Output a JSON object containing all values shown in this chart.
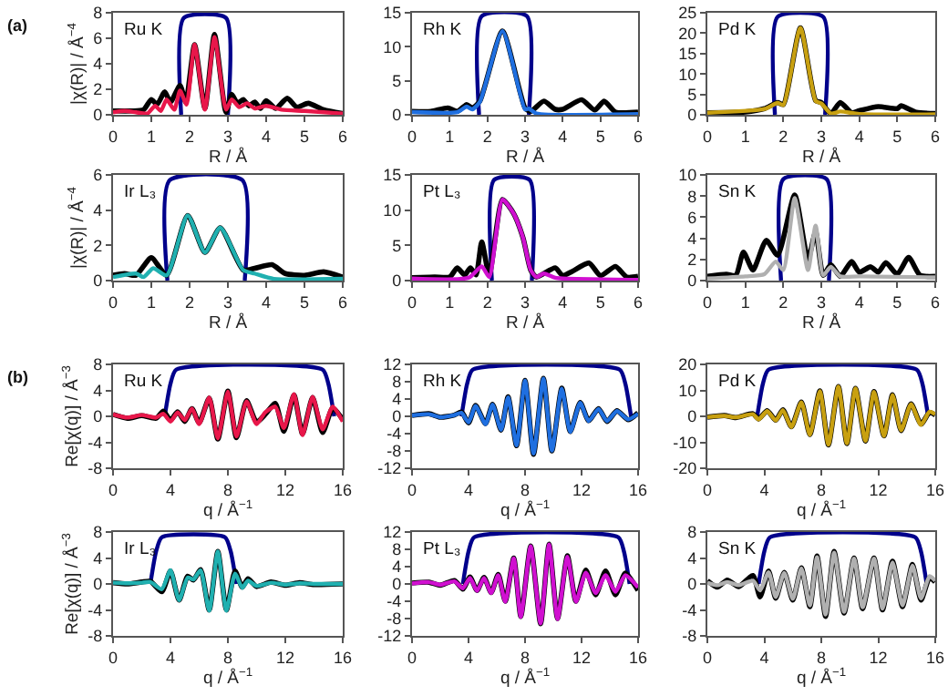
{
  "chart_data": [
    {
      "type": "line",
      "annotations": [
        "Ru K",
        "(a)"
      ],
      "xlabel": "R / Å",
      "ylabel": "|χ(R)| / Å$^{−4}$",
      "xlim": [
        0,
        6
      ],
      "xticks": [
        0,
        1,
        2,
        3,
        4,
        5,
        6
      ],
      "ylim": [
        0,
        8
      ],
      "yticks": [
        0,
        2,
        4,
        6,
        8
      ],
      "series": [
        {
          "color": "#00008b",
          "x": [
            1.78,
            1.85,
            2.95,
            3.0
          ],
          "values": [
            0,
            7.6,
            7.6,
            0
          ]
        },
        {
          "color": "#000000",
          "x": [
            0,
            0.5,
            0.8,
            1.0,
            1.15,
            1.35,
            1.5,
            1.75,
            1.9,
            2.13,
            2.4,
            2.65,
            2.95,
            3.1,
            3.25,
            3.4,
            3.55,
            3.7,
            3.85,
            4.0,
            4.25,
            4.55,
            4.8,
            5.1,
            5.5,
            6
          ],
          "values": [
            0.3,
            0.3,
            0.4,
            1.2,
            0.8,
            1.8,
            1.0,
            2.3,
            1.0,
            5.5,
            0.5,
            6.3,
            0.2,
            1.6,
            0.9,
            1.2,
            0.7,
            1.0,
            0.5,
            1.1,
            0.5,
            1.3,
            0.6,
            0.9,
            0.4,
            0.1
          ]
        },
        {
          "color": "#e8174a",
          "x": [
            0,
            0.3,
            0.6,
            0.9,
            1.1,
            1.25,
            1.4,
            1.6,
            1.75,
            1.92,
            2.13,
            2.4,
            2.65,
            2.95,
            3.1,
            3.3,
            3.5,
            3.7,
            4.0,
            4.4,
            5.0,
            6
          ],
          "values": [
            0.2,
            0.3,
            0.2,
            0.1,
            0.7,
            0.3,
            1.2,
            0.4,
            1.9,
            0.8,
            5.5,
            0.4,
            6.1,
            0.4,
            1.2,
            0.6,
            0.9,
            0.5,
            0.7,
            0.4,
            0.3,
            0.1
          ]
        }
      ]
    },
    {
      "type": "line",
      "annotations": [
        "Rh K"
      ],
      "xlabel": "R / Å",
      "xlim": [
        0,
        6
      ],
      "xticks": [
        0,
        1,
        2,
        3,
        4,
        5,
        6
      ],
      "ylim": [
        0,
        15
      ],
      "yticks": [
        0,
        5,
        10,
        15
      ],
      "series": [
        {
          "color": "#00008b",
          "x": [
            1.78,
            1.85,
            3.05,
            3.1
          ],
          "values": [
            0,
            14.5,
            14.5,
            0
          ]
        },
        {
          "color": "#000000",
          "x": [
            0,
            0.5,
            0.95,
            1.2,
            1.45,
            1.6,
            1.8,
            2.4,
            3.0,
            3.15,
            3.5,
            3.8,
            4.0,
            4.5,
            4.85,
            5.1,
            5.4,
            6
          ],
          "values": [
            0.5,
            0.5,
            1.0,
            0.5,
            1.5,
            1.0,
            2.0,
            12.3,
            1.0,
            0.5,
            2.0,
            0.8,
            0.8,
            2.2,
            0.7,
            2.0,
            0.4,
            0.4
          ]
        },
        {
          "color": "#1f6fe0",
          "x": [
            0,
            1.2,
            1.45,
            1.6,
            1.8,
            2.4,
            3.0,
            3.1,
            3.3,
            6
          ],
          "values": [
            0.4,
            0.4,
            1.2,
            0.8,
            1.9,
            12.3,
            0.8,
            0.9,
            0.2,
            0.1
          ]
        }
      ]
    },
    {
      "type": "line",
      "annotations": [
        "Pd K"
      ],
      "xlabel": "R / Å",
      "xlim": [
        0,
        6
      ],
      "xticks": [
        0,
        1,
        2,
        3,
        4,
        5,
        6
      ],
      "ylim": [
        0,
        25
      ],
      "yticks": [
        0,
        5,
        10,
        15,
        20,
        25
      ],
      "series": [
        {
          "color": "#00008b",
          "x": [
            1.78,
            1.85,
            3.05,
            3.1
          ],
          "values": [
            0,
            24,
            24,
            0
          ]
        },
        {
          "color": "#000000",
          "x": [
            0,
            1.0,
            1.5,
            1.85,
            2.0,
            2.45,
            2.85,
            3.0,
            3.25,
            3.5,
            3.8,
            4.0,
            4.5,
            5.0,
            5.1,
            5.5,
            6
          ],
          "values": [
            0.5,
            0.7,
            1.5,
            3.0,
            2.5,
            21.3,
            3.5,
            3.0,
            0.3,
            3.0,
            0.5,
            1.0,
            2.0,
            1.5,
            2.2,
            0.6,
            0.3
          ]
        },
        {
          "color": "#c8a010",
          "x": [
            0,
            1.5,
            1.85,
            2.0,
            2.45,
            2.85,
            3.0,
            3.25,
            3.5,
            4.0,
            6
          ],
          "values": [
            0.5,
            1.4,
            2.9,
            2.4,
            21.3,
            3.4,
            2.8,
            0.3,
            0.8,
            0.2,
            0.1
          ]
        }
      ]
    },
    {
      "type": "line",
      "annotations": [
        "Ir L₃"
      ],
      "xlabel": "R / Å",
      "ylabel": "|χ(R)| / Å$^{−4}$",
      "xlim": [
        0,
        6
      ],
      "xticks": [
        0,
        1,
        2,
        3,
        4,
        5,
        6
      ],
      "ylim": [
        0,
        6
      ],
      "yticks": [
        0,
        2,
        4,
        6
      ],
      "series": [
        {
          "color": "#00008b",
          "x": [
            1.42,
            1.48,
            3.38,
            3.44
          ],
          "values": [
            0,
            5.7,
            5.7,
            0
          ]
        },
        {
          "color": "#000000",
          "x": [
            0,
            0.3,
            0.6,
            1.0,
            1.4,
            1.95,
            2.4,
            2.8,
            3.4,
            3.7,
            4.15,
            4.5,
            5.0,
            5.5,
            6
          ],
          "values": [
            0.3,
            0.4,
            0.3,
            1.3,
            0.3,
            3.7,
            1.6,
            3.0,
            0.6,
            0.7,
            0.9,
            0.4,
            0.3,
            0.5,
            0.2
          ]
        },
        {
          "color": "#20b0b0",
          "x": [
            0,
            0.6,
            0.8,
            1.05,
            1.4,
            1.95,
            2.4,
            2.8,
            3.4,
            3.7,
            4.2,
            6
          ],
          "values": [
            0.2,
            0.4,
            0.2,
            0.7,
            0.3,
            3.7,
            1.6,
            3.0,
            0.6,
            0.4,
            0.1,
            0.1
          ]
        }
      ]
    },
    {
      "type": "line",
      "annotations": [
        "Pt L₃"
      ],
      "xlabel": "R / Å",
      "xlim": [
        0,
        6
      ],
      "xticks": [
        0,
        1,
        2,
        3,
        4,
        5,
        6
      ],
      "ylim": [
        0,
        15
      ],
      "yticks": [
        0,
        5,
        10,
        15
      ],
      "series": [
        {
          "color": "#00008b",
          "x": [
            2.12,
            2.18,
            3.12,
            3.18
          ],
          "values": [
            0,
            14.3,
            14.3,
            0
          ]
        },
        {
          "color": "#000000",
          "x": [
            0,
            0.6,
            1.0,
            1.2,
            1.4,
            1.55,
            1.7,
            1.85,
            2.05,
            2.4,
            2.7,
            2.95,
            3.15,
            3.3,
            3.8,
            4.0,
            4.25,
            4.7,
            5.0,
            5.4,
            5.7,
            6
          ],
          "values": [
            0.4,
            0.5,
            0.5,
            1.8,
            0.8,
            1.8,
            0.8,
            5.5,
            0.8,
            11.5,
            9.5,
            6.0,
            1.5,
            0.5,
            1.8,
            0.7,
            1.3,
            2.5,
            0.7,
            2.0,
            0.5,
            0.6
          ]
        },
        {
          "color": "#d010d0",
          "x": [
            0,
            1.5,
            1.85,
            2.05,
            2.4,
            2.7,
            2.95,
            3.15,
            3.3,
            3.5,
            3.8,
            4.0,
            6
          ],
          "values": [
            0.3,
            0.4,
            2.0,
            0.5,
            11.5,
            9.5,
            6.0,
            1.5,
            0.5,
            1.0,
            0.4,
            0.3,
            0.1
          ]
        }
      ]
    },
    {
      "type": "line",
      "annotations": [
        "Sn K"
      ],
      "xlabel": "R / Å",
      "xlim": [
        0,
        6
      ],
      "xticks": [
        0,
        1,
        2,
        3,
        4,
        5,
        6
      ],
      "ylim": [
        0,
        10
      ],
      "yticks": [
        0,
        2,
        4,
        6,
        8,
        10
      ],
      "series": [
        {
          "color": "#00008b",
          "x": [
            1.94,
            2.0,
            3.14,
            3.2
          ],
          "values": [
            0,
            9.6,
            9.6,
            0
          ]
        },
        {
          "color": "#000000",
          "x": [
            0,
            0.5,
            0.75,
            0.95,
            1.2,
            1.55,
            1.85,
            2.3,
            2.65,
            2.85,
            3.05,
            3.25,
            3.5,
            3.8,
            4.0,
            4.3,
            4.5,
            4.7,
            5.0,
            5.3,
            5.6,
            6
          ],
          "values": [
            0.4,
            0.6,
            0.5,
            2.7,
            1.0,
            3.8,
            2.4,
            8.1,
            2.0,
            4.6,
            0.5,
            1.5,
            0.4,
            1.8,
            0.8,
            1.3,
            0.8,
            1.7,
            0.6,
            2.2,
            0.5,
            0.4
          ]
        },
        {
          "color": "#b0b0b0",
          "x": [
            0,
            1.0,
            1.5,
            1.8,
            2.0,
            2.3,
            2.65,
            2.85,
            3.05,
            3.25,
            3.5,
            4.0,
            6
          ],
          "values": [
            0.2,
            0.4,
            0.6,
            1.8,
            1.0,
            7.8,
            1.0,
            5.2,
            0.5,
            1.3,
            0.4,
            0.4,
            0.3
          ]
        }
      ]
    },
    {
      "type": "line",
      "annotations": [
        "Ru K",
        "(b)"
      ],
      "xlabel": "q / Å$^{−1}$",
      "ylabel": "Re[χ(q)] / Å$^{−3}$",
      "xlim": [
        0,
        16
      ],
      "xticks": [
        0,
        4,
        8,
        12,
        16
      ],
      "ylim": [
        -8,
        8
      ],
      "yticks": [
        -8,
        -4,
        0,
        4,
        8
      ],
      "series": [
        {
          "color": "#00008b",
          "x": [
            3.6,
            4.0,
            4.4,
            14.6,
            15.0,
            15.4
          ],
          "values": [
            0,
            5,
            7.2,
            7.2,
            5,
            0
          ]
        },
        {
          "color": "#000000",
          "x": [
            0,
            1,
            2,
            3,
            3.5,
            4,
            4.5,
            5,
            5.5,
            6,
            6.7,
            7.3,
            8,
            8.6,
            9.3,
            10,
            10.6,
            11.3,
            11.9,
            12.6,
            13.2,
            13.9,
            14.6,
            15.3,
            16
          ],
          "values": [
            0.3,
            -0.3,
            0.1,
            -0.3,
            0.8,
            -0.6,
            0.7,
            -0.8,
            1.2,
            -1.0,
            2.8,
            -3.5,
            3.9,
            -3.3,
            2.4,
            -0.9,
            0.3,
            2.0,
            -2.3,
            3.3,
            -2.7,
            2.9,
            -2.5,
            1.3,
            -0.5
          ]
        },
        {
          "color": "#e8174a",
          "x": [
            0,
            1,
            2,
            3,
            3.5,
            4,
            4.5,
            5,
            5.5,
            6,
            6.7,
            7.3,
            8,
            8.6,
            9.3,
            10,
            10.6,
            11.3,
            11.9,
            12.6,
            13.2,
            13.9,
            14.6,
            15.3,
            16
          ],
          "values": [
            0.3,
            -0.2,
            0.2,
            -0.2,
            0.4,
            -0.8,
            0.6,
            -0.6,
            1.2,
            -1.2,
            2.9,
            -3.4,
            3.8,
            -3.1,
            2.3,
            -1.2,
            0.6,
            1.5,
            -1.8,
            3.4,
            -2.9,
            3.0,
            -2.0,
            1.5,
            -0.8
          ]
        }
      ]
    },
    {
      "type": "line",
      "annotations": [
        "Rh K"
      ],
      "xlabel": "q / Å$^{−1}$",
      "xlim": [
        0,
        16
      ],
      "xticks": [
        0,
        4,
        8,
        12,
        16
      ],
      "ylim": [
        -12,
        12
      ],
      "yticks": [
        -12,
        -8,
        -4,
        0,
        4,
        8,
        12
      ],
      "series": [
        {
          "color": "#00008b",
          "x": [
            3.5,
            3.9,
            4.3,
            14.7,
            15.1,
            15.5
          ],
          "values": [
            0,
            7.5,
            10.8,
            10.8,
            7.5,
            0
          ]
        },
        {
          "color": "#000000",
          "x": [
            0,
            1.2,
            2,
            3,
            3.5,
            4,
            4.5,
            5.2,
            5.7,
            6.3,
            6.8,
            7.4,
            8,
            8.6,
            9.3,
            9.9,
            10.6,
            11.2,
            11.9,
            12.5,
            13.2,
            13.8,
            14.5,
            15.3,
            16
          ],
          "values": [
            0.2,
            0.6,
            -0.2,
            0.3,
            1.0,
            -1.5,
            2.5,
            -1.7,
            2.8,
            -3.2,
            4.5,
            -6.8,
            8.3,
            -8.8,
            8.8,
            -8.0,
            6.5,
            -3.5,
            3.2,
            -1.0,
            1.8,
            -1.2,
            1.3,
            -0.8,
            0.8
          ]
        },
        {
          "color": "#1f6fe0",
          "x": [
            0,
            1.2,
            2,
            3,
            3.5,
            4,
            4.5,
            5.2,
            5.7,
            6.3,
            6.8,
            7.4,
            8,
            8.6,
            9.3,
            9.9,
            10.6,
            11.2,
            11.9,
            12.5,
            13.2,
            13.8,
            14.5,
            15.3,
            16
          ],
          "values": [
            0.2,
            0.5,
            -0.2,
            0.3,
            0.8,
            -1.4,
            2.4,
            -1.8,
            2.7,
            -3.1,
            4.4,
            -6.7,
            8.2,
            -8.6,
            8.7,
            -7.9,
            6.4,
            -3.6,
            3.1,
            -1.1,
            1.7,
            -1.1,
            1.2,
            -0.7,
            0.6
          ]
        }
      ]
    },
    {
      "type": "line",
      "annotations": [
        "Pd K"
      ],
      "xlabel": "q / Å$^{−1}$",
      "xlim": [
        0,
        16
      ],
      "xticks": [
        0,
        4,
        8,
        12,
        16
      ],
      "ylim": [
        -20,
        20
      ],
      "yticks": [
        -20,
        -10,
        0,
        10,
        20
      ],
      "series": [
        {
          "color": "#00008b",
          "x": [
            3.5,
            3.9,
            4.3,
            14.7,
            15.1,
            15.5
          ],
          "values": [
            0,
            12.5,
            18,
            18,
            12.5,
            0
          ]
        },
        {
          "color": "#000000",
          "x": [
            0,
            1.2,
            2,
            3.2,
            3.6,
            4.2,
            4.8,
            5.3,
            5.9,
            6.6,
            7.2,
            7.9,
            8.5,
            9.2,
            9.8,
            10.4,
            11.1,
            11.7,
            12.4,
            13.0,
            13.6,
            14.3,
            15.0,
            15.6,
            16
          ],
          "values": [
            -0.3,
            0.3,
            -0.5,
            1.0,
            -1.0,
            2.2,
            -1.5,
            2.5,
            -4.0,
            5.5,
            -7.0,
            9.8,
            -11.0,
            11.5,
            -10.5,
            10.8,
            -9.5,
            9.5,
            -7.5,
            8.3,
            -5.5,
            4.8,
            -3.0,
            1.5,
            0.5
          ]
        },
        {
          "color": "#c8a010",
          "x": [
            0,
            1.2,
            2,
            3.2,
            3.6,
            4.2,
            4.8,
            5.3,
            5.9,
            6.6,
            7.2,
            7.9,
            8.5,
            9.2,
            9.8,
            10.4,
            11.1,
            11.7,
            12.4,
            13.0,
            13.6,
            14.3,
            15.0,
            15.6,
            16
          ],
          "values": [
            -0.3,
            0.2,
            -0.4,
            0.8,
            -1.2,
            2.0,
            -1.6,
            2.4,
            -4.1,
            5.4,
            -7.1,
            9.7,
            -10.9,
            11.4,
            -10.4,
            10.7,
            -9.4,
            9.4,
            -7.6,
            8.2,
            -5.4,
            4.7,
            -3.3,
            1.8,
            0.8
          ]
        }
      ]
    },
    {
      "type": "line",
      "annotations": [
        "Ir L₃"
      ],
      "xlabel": "q / Å$^{−1}$",
      "ylabel": "Re[χ(q)] / Å$^{−3}$",
      "xlim": [
        0,
        16
      ],
      "xticks": [
        0,
        4,
        8,
        12,
        16
      ],
      "ylim": [
        -8,
        8
      ],
      "yticks": [
        -8,
        -4,
        0,
        4,
        8
      ],
      "series": [
        {
          "color": "#00008b",
          "x": [
            2.6,
            3.0,
            3.4,
            7.8,
            8.2,
            8.6
          ],
          "values": [
            0,
            5,
            7.2,
            7.2,
            5,
            0
          ]
        },
        {
          "color": "#000000",
          "x": [
            0,
            1,
            2,
            2.6,
            3.4,
            4.0,
            4.6,
            5.2,
            5.6,
            6.1,
            6.7,
            7.3,
            7.9,
            8.5,
            9.0,
            9.4,
            10,
            11,
            12,
            13,
            14,
            16
          ],
          "values": [
            0.2,
            0,
            0.3,
            0.4,
            -1.2,
            2.0,
            -2.5,
            1.2,
            0.6,
            2.2,
            -4.0,
            5.0,
            -4.0,
            2.0,
            -0.5,
            0.8,
            -0.4,
            0.3,
            -0.2,
            0.2,
            -0.1,
            0
          ]
        },
        {
          "color": "#20b0b0",
          "x": [
            0,
            1,
            2,
            2.6,
            3.4,
            4.0,
            4.6,
            5.2,
            5.6,
            6.1,
            6.7,
            7.3,
            7.9,
            8.5,
            9.0,
            9.4,
            10,
            11,
            12,
            13,
            14,
            16
          ],
          "values": [
            0.2,
            0.1,
            0.2,
            0.3,
            -0.8,
            2.1,
            -2.5,
            1.0,
            0.7,
            2.1,
            -4.1,
            5.0,
            -4.1,
            1.6,
            -0.6,
            0.5,
            -0.3,
            0.2,
            -0.1,
            0.1,
            0,
            0
          ]
        }
      ]
    },
    {
      "type": "line",
      "annotations": [
        "Pt L₃"
      ],
      "xlabel": "q / Å$^{−1}$",
      "xlim": [
        0,
        16
      ],
      "xticks": [
        0,
        4,
        8,
        12,
        16
      ],
      "ylim": [
        -12,
        12
      ],
      "yticks": [
        -12,
        -8,
        -4,
        0,
        4,
        8,
        12
      ],
      "series": [
        {
          "color": "#00008b",
          "x": [
            3.6,
            4.0,
            4.4,
            14.6,
            15.0,
            15.4
          ],
          "values": [
            0,
            7.5,
            10.8,
            10.8,
            7.5,
            0
          ]
        },
        {
          "color": "#000000",
          "x": [
            0,
            1.2,
            2,
            3,
            3.6,
            4.1,
            4.6,
            5.1,
            5.6,
            6.1,
            6.6,
            7.2,
            7.7,
            8.4,
            9.1,
            9.7,
            10.3,
            11.0,
            11.6,
            12.3,
            13.0,
            13.7,
            14.4,
            15.1,
            16
          ],
          "values": [
            0.2,
            0.4,
            -0.3,
            0.8,
            -1.2,
            1.6,
            -1.5,
            1.5,
            -2.0,
            2.2,
            -4.0,
            6.0,
            -7.5,
            8.8,
            -9.2,
            9.2,
            -8.0,
            6.5,
            -4.0,
            3.2,
            -2.5,
            3.0,
            -2.5,
            2.5,
            -1.5
          ]
        },
        {
          "color": "#d010d0",
          "x": [
            0,
            1.2,
            2,
            3,
            3.6,
            4.1,
            4.6,
            5.1,
            5.6,
            6.1,
            6.6,
            7.2,
            7.7,
            8.4,
            9.1,
            9.7,
            10.3,
            11.0,
            11.6,
            12.3,
            13.0,
            13.7,
            14.4,
            15.1,
            16
          ],
          "values": [
            0.1,
            0.4,
            -0.2,
            0.6,
            -1.0,
            1.4,
            -1.6,
            1.4,
            -2.1,
            2.0,
            -4.1,
            5.9,
            -7.6,
            8.7,
            -9.1,
            9.1,
            -8.1,
            6.3,
            -4.1,
            2.6,
            -2.1,
            2.0,
            -1.8,
            2.0,
            -0.8
          ]
        }
      ]
    },
    {
      "type": "line",
      "annotations": [
        "Sn K"
      ],
      "xlabel": "q / Å$^{−1}$",
      "xlim": [
        0,
        16
      ],
      "xticks": [
        0,
        4,
        8,
        12,
        16
      ],
      "ylim": [
        -8,
        8
      ],
      "yticks": [
        -8,
        -4,
        0,
        4,
        8
      ],
      "series": [
        {
          "color": "#00008b",
          "x": [
            3.6,
            4.0,
            4.4,
            14.6,
            15.0,
            15.4
          ],
          "values": [
            0,
            5,
            7.2,
            7.2,
            5,
            0
          ]
        },
        {
          "color": "#000000",
          "x": [
            0,
            0.7,
            1.4,
            2.2,
            3.2,
            3.7,
            4.3,
            4.8,
            5.4,
            6.0,
            6.6,
            7.2,
            7.7,
            8.3,
            8.9,
            9.6,
            10.3,
            10.9,
            11.7,
            12.3,
            13.0,
            13.7,
            14.4,
            15.0,
            15.6,
            16
          ],
          "values": [
            0.5,
            -0.5,
            0.6,
            -0.4,
            1.3,
            -2.0,
            2.0,
            -2.2,
            1.8,
            -2.5,
            2.5,
            -3.5,
            4.3,
            -5.0,
            5.0,
            -4.5,
            4.0,
            -3.8,
            4.0,
            -4.0,
            3.5,
            -3.5,
            3.0,
            -2.5,
            1.0,
            0.3
          ]
        },
        {
          "color": "#b0b0b0",
          "x": [
            0,
            0.7,
            1.4,
            2.2,
            3.2,
            3.7,
            4.3,
            4.8,
            5.4,
            6.0,
            6.6,
            7.2,
            7.7,
            8.3,
            8.9,
            9.6,
            10.3,
            10.9,
            11.7,
            12.3,
            13.0,
            13.7,
            14.4,
            15.0,
            15.6,
            16
          ],
          "values": [
            0.2,
            -0.2,
            0.3,
            -0.2,
            0.5,
            -1.0,
            1.8,
            -2.0,
            1.7,
            -2.3,
            2.4,
            -3.3,
            4.1,
            -4.7,
            4.8,
            -4.3,
            3.9,
            -3.6,
            3.9,
            -3.8,
            3.3,
            -3.3,
            2.8,
            -2.2,
            1.2,
            0.5
          ]
        }
      ]
    }
  ]
}
